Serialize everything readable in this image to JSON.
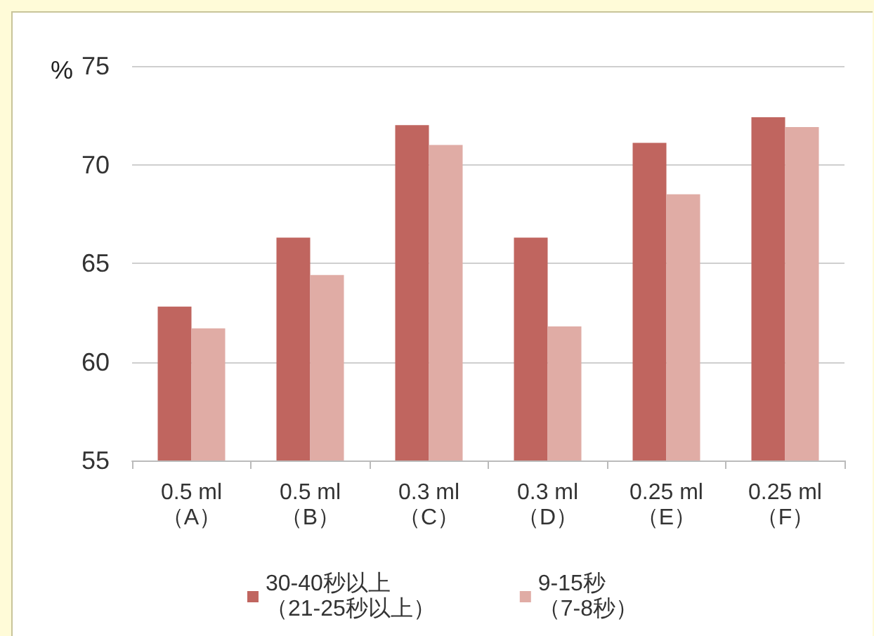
{
  "chart_data": {
    "type": "bar",
    "ylabel": "%",
    "categories": [
      "0.5 ml\n（A）",
      "0.5 ml\n（B）",
      "0.3 ml\n（C）",
      "0.3 ml\n（D）",
      "0.25 ml\n（E）",
      "0.25 ml\n（F）"
    ],
    "series": [
      {
        "name": "30-40秒以上（21-25秒以上）",
        "color": "#c0655f",
        "values": [
          62.8,
          66.3,
          72.0,
          66.3,
          71.1,
          72.4
        ]
      },
      {
        "name": "9-15秒（7-8秒）",
        "color": "#e0aca5",
        "values": [
          61.7,
          64.4,
          71.0,
          61.8,
          68.5,
          71.9
        ]
      }
    ],
    "ylim": [
      55,
      75
    ],
    "yticks": [
      55,
      60,
      65,
      70,
      75
    ],
    "grid": "y",
    "legend": "bottom"
  }
}
